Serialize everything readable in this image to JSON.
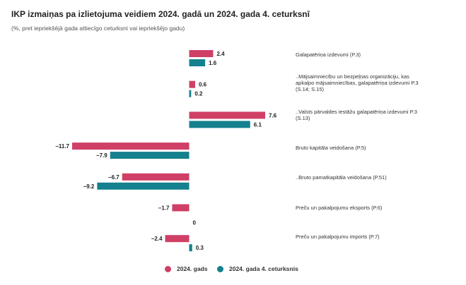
{
  "title": "IKP izmaiņas pa izlietojuma veidiem 2024. gadā un 2024. gada 4. ceturksnī",
  "subtitle": "(%, pret iepriekšējā gada attiecīgo ceturksni vai iepriekšējo gadu)",
  "colors": {
    "series1": "#cf3f66",
    "series2": "#15808e"
  },
  "chart_data": {
    "type": "bar",
    "orientation": "horizontal",
    "title": "IKP izmaiņas pa izlietojuma veidiem 2024. gadā un 2024. gada 4. ceturksnī",
    "subtitle": "(%, pret iepriekšējā gada attiecīgo ceturksni vai iepriekšējo gadu)",
    "categories": [
      "Galapatēriņa izdevumi (P.3)",
      "..Mājsaimniecību un bezpeļņas organizāciju, kas apkalpo mājsaimniecības, galapatēriņa izdevumi P.3 (S.14; S.15)",
      "..Valsts pārvaldes iestāžu galapatēriņa izdevumi P.3 (S.13)",
      "Bruto kapitāla veidošana (P.5)",
      "..Bruto pamatkapitāla veidošana (P.51)",
      "Preču un pakalpojumu eksports (P.6)",
      "Preču un pakalpojumu imports (P.7)"
    ],
    "series": [
      {
        "name": "2024. gads",
        "values": [
          2.4,
          0.6,
          7.6,
          -11.7,
          -6.7,
          -1.7,
          -2.4
        ],
        "labels": [
          "2.4",
          "0.6",
          "7.6",
          "−11.7",
          "−6.7",
          "−1.7",
          "−2.4"
        ]
      },
      {
        "name": "2024. gada 4. ceturksnis",
        "values": [
          1.6,
          0.2,
          6.1,
          -7.9,
          -9.2,
          0,
          0.3
        ],
        "labels": [
          "1.6",
          "0.2",
          "6.1",
          "−7.9",
          "−9.2",
          "0",
          "0.3"
        ]
      }
    ],
    "xlim": [
      -11.7,
      7.6
    ],
    "legend": "bottom-center"
  }
}
